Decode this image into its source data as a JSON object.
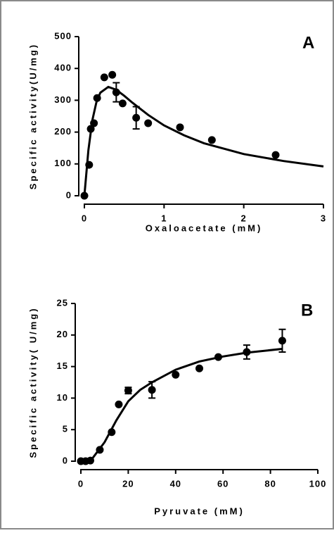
{
  "chart_data": [
    {
      "type": "scatter",
      "title": "A",
      "x_label": "Oxaloacetate (mM)",
      "y_label": "Specific activity(U/mg)",
      "color": "#000000",
      "x": [
        0,
        0.06,
        0.08,
        0.12,
        0.16,
        0.25,
        0.35,
        0.4,
        0.48,
        0.65,
        0.8,
        1.2,
        1.6,
        2.4
      ],
      "values": [
        0,
        97,
        210,
        228,
        307,
        372,
        380,
        325,
        290,
        245,
        228,
        215,
        175,
        128
      ],
      "errors": [
        null,
        null,
        null,
        null,
        null,
        null,
        null,
        30,
        null,
        35,
        null,
        null,
        null,
        null
      ],
      "fit_x": [
        0,
        0.05,
        0.1,
        0.15,
        0.2,
        0.3,
        0.4,
        0.5,
        0.6,
        0.8,
        1,
        1.25,
        1.5,
        2,
        2.5,
        3
      ],
      "fit_values": [
        0,
        143,
        237,
        293,
        324,
        342,
        333,
        314,
        293,
        254,
        221,
        190,
        165,
        131,
        109,
        92
      ],
      "xlim": [
        0,
        3
      ],
      "xticks": [
        0,
        1,
        2,
        3
      ],
      "ylim": [
        0,
        500
      ],
      "yticks": [
        0,
        100,
        200,
        300,
        400,
        500
      ]
    },
    {
      "type": "scatter",
      "title": "B",
      "x_label": "Pyruvate (mM)",
      "y_label": "Specific activity( U/mg)",
      "color": "#000000",
      "x": [
        0,
        2,
        4,
        8,
        13,
        16,
        20,
        30,
        40,
        50,
        58,
        70,
        85
      ],
      "values": [
        0,
        0,
        0.1,
        1.8,
        4.6,
        9,
        11.2,
        11.3,
        13.7,
        14.7,
        16.5,
        17.3,
        19.1
      ],
      "errors": [
        null,
        null,
        null,
        null,
        null,
        null,
        0.5,
        1.3,
        null,
        null,
        null,
        1.1,
        1.8
      ],
      "fit_x": [
        0,
        5,
        10,
        15,
        20,
        25,
        30,
        40,
        50,
        60,
        70,
        85
      ],
      "fit_values": [
        0,
        0.5,
        3,
        6.5,
        9.5,
        11.3,
        12.5,
        14.5,
        15.8,
        16.6,
        17.2,
        17.8
      ],
      "xlim": [
        0,
        100
      ],
      "xticks": [
        0,
        20,
        40,
        60,
        80,
        100
      ],
      "ylim": [
        0,
        25
      ],
      "yticks": [
        0,
        5,
        10,
        15,
        20,
        25
      ]
    }
  ]
}
